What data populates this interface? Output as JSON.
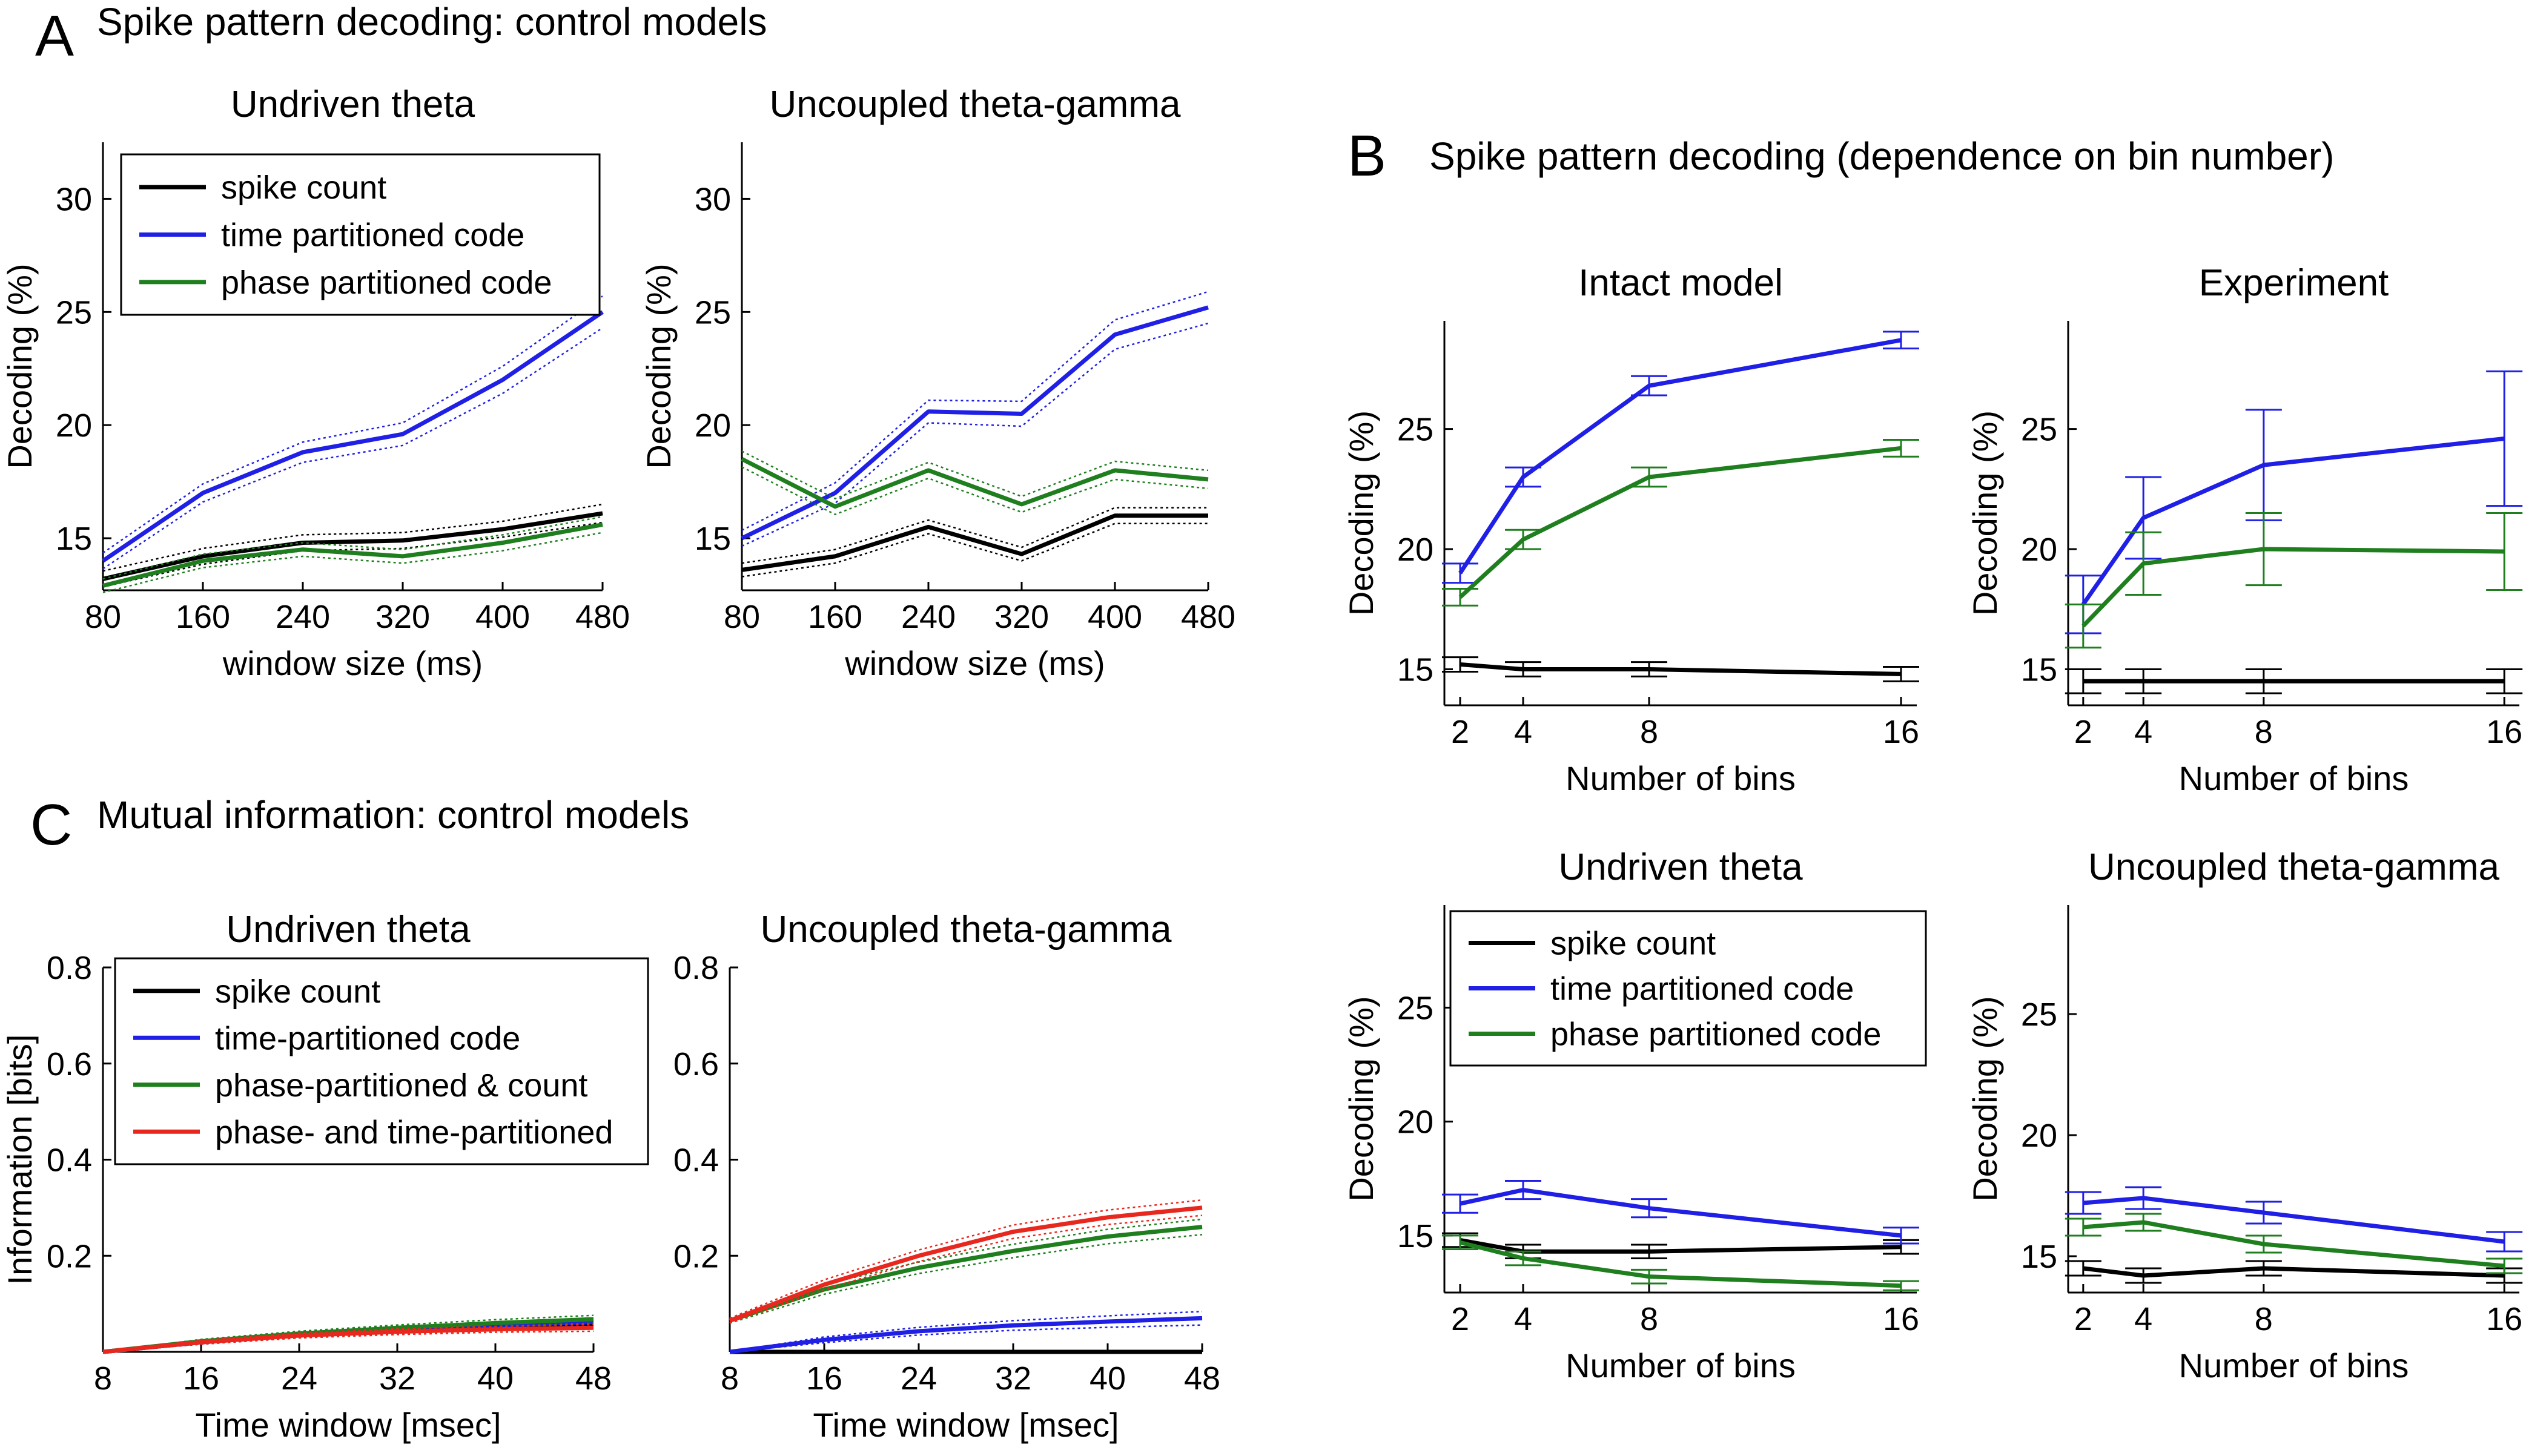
{
  "colors": {
    "spike_count": "#000000",
    "time_partitioned": "#1f1fe6",
    "phase_partitioned": "#1f7f1f",
    "phase_and_time": "#e8281e"
  },
  "panels": {
    "A": {
      "letter": "A",
      "title": "Spike pattern decoding: control models"
    },
    "B": {
      "letter": "B",
      "title": "Spike pattern decoding (dependence on bin number)"
    },
    "C": {
      "letter": "C",
      "title": "Mutual information: control models"
    }
  },
  "chart_data": [
    {
      "id": "A1",
      "type": "line",
      "title": "Undriven theta",
      "xlabel": "window size (ms)",
      "ylabel": "Decoding (%)",
      "x": [
        80,
        160,
        240,
        320,
        400,
        480
      ],
      "xlim": [
        80,
        480
      ],
      "ylim": [
        12.7,
        32.5
      ],
      "xticks": [
        "80",
        "160",
        "240",
        "320",
        "400",
        "480"
      ],
      "yticks": [
        "15",
        "20",
        "25",
        "30"
      ],
      "band": "dotted",
      "legend": [
        "spike count",
        "time partitioned code",
        "phase partitioned code"
      ],
      "series": [
        {
          "name": "spike count",
          "color_key": "spike_count",
          "values": [
            13.2,
            14.2,
            14.8,
            14.9,
            15.4,
            16.1
          ],
          "err": [
            0.35,
            0.35,
            0.35,
            0.35,
            0.35,
            0.4
          ]
        },
        {
          "name": "time partitioned code",
          "color_key": "time_partitioned",
          "values": [
            14.0,
            17.0,
            18.8,
            19.6,
            22.0,
            25.0
          ],
          "err": [
            0.35,
            0.4,
            0.45,
            0.5,
            0.6,
            0.7
          ]
        },
        {
          "name": "phase partitioned code",
          "color_key": "phase_partitioned",
          "values": [
            12.9,
            14.0,
            14.5,
            14.2,
            14.8,
            15.6
          ],
          "err": [
            0.3,
            0.3,
            0.3,
            0.3,
            0.35,
            0.35
          ]
        }
      ]
    },
    {
      "id": "A2",
      "type": "line",
      "title": "Uncoupled theta-gamma",
      "xlabel": "window size (ms)",
      "ylabel": "Decoding (%)",
      "x": [
        80,
        160,
        240,
        320,
        400,
        480
      ],
      "xlim": [
        80,
        480
      ],
      "ylim": [
        12.7,
        32.5
      ],
      "xticks": [
        "80",
        "160",
        "240",
        "320",
        "400",
        "480"
      ],
      "yticks": [
        "15",
        "20",
        "25",
        "30"
      ],
      "band": "dotted",
      "series": [
        {
          "name": "spike count",
          "color_key": "spike_count",
          "values": [
            13.6,
            14.2,
            15.5,
            14.3,
            16.0,
            16.0
          ],
          "err": [
            0.3,
            0.3,
            0.3,
            0.3,
            0.35,
            0.35
          ]
        },
        {
          "name": "time partitioned code",
          "color_key": "time_partitioned",
          "values": [
            15.0,
            17.0,
            20.6,
            20.5,
            24.0,
            25.2
          ],
          "err": [
            0.35,
            0.45,
            0.5,
            0.55,
            0.65,
            0.7
          ]
        },
        {
          "name": "phase partitioned code",
          "color_key": "phase_partitioned",
          "values": [
            18.5,
            16.4,
            18.0,
            16.5,
            18.0,
            17.6
          ],
          "err": [
            0.35,
            0.35,
            0.35,
            0.35,
            0.4,
            0.4
          ]
        }
      ]
    },
    {
      "id": "B1",
      "type": "line",
      "title": "Intact model",
      "xlabel": "Number of bins",
      "ylabel": "Decoding (%)",
      "x": [
        2,
        4,
        8,
        16
      ],
      "xlim": [
        1.5,
        16.5
      ],
      "ylim": [
        13.5,
        29.5
      ],
      "xticks": [
        "2",
        "4",
        "8",
        "16"
      ],
      "yticks": [
        "15",
        "20",
        "25"
      ],
      "band": "errorbar",
      "series": [
        {
          "name": "spike count",
          "color_key": "spike_count",
          "values": [
            15.2,
            15.0,
            15.0,
            14.8
          ],
          "err": [
            0.3,
            0.3,
            0.3,
            0.3
          ]
        },
        {
          "name": "time partitioned code",
          "color_key": "time_partitioned",
          "values": [
            19.0,
            23.0,
            26.8,
            28.7
          ],
          "err": [
            0.4,
            0.4,
            0.4,
            0.35
          ]
        },
        {
          "name": "phase partitioned code",
          "color_key": "phase_partitioned",
          "values": [
            18.0,
            20.4,
            23.0,
            24.2
          ],
          "err": [
            0.35,
            0.4,
            0.4,
            0.35
          ]
        }
      ]
    },
    {
      "id": "B2",
      "type": "line",
      "title": "Experiment",
      "xlabel": "Number of bins",
      "ylabel": "Decoding (%)",
      "x": [
        2,
        4,
        8,
        16
      ],
      "xlim": [
        1.5,
        16.5
      ],
      "ylim": [
        13.5,
        29.5
      ],
      "xticks": [
        "2",
        "4",
        "8",
        "16"
      ],
      "yticks": [
        "15",
        "20",
        "25"
      ],
      "band": "errorbar",
      "series": [
        {
          "name": "spike count",
          "color_key": "spike_count",
          "values": [
            14.5,
            14.5,
            14.5,
            14.5
          ],
          "err": [
            0.5,
            0.5,
            0.5,
            0.5
          ]
        },
        {
          "name": "time partitioned code",
          "color_key": "time_partitioned",
          "values": [
            17.7,
            21.3,
            23.5,
            24.6
          ],
          "err": [
            1.2,
            1.7,
            2.3,
            2.8
          ]
        },
        {
          "name": "phase partitioned code",
          "color_key": "phase_partitioned",
          "values": [
            16.8,
            19.4,
            20.0,
            19.9
          ],
          "err": [
            0.9,
            1.3,
            1.5,
            1.6
          ]
        }
      ]
    },
    {
      "id": "B3",
      "type": "line",
      "title": "Undriven theta",
      "xlabel": "Number of bins",
      "ylabel": "Decoding (%)",
      "x": [
        2,
        4,
        8,
        16
      ],
      "xlim": [
        1.5,
        16.5
      ],
      "ylim": [
        12.5,
        29.5
      ],
      "xticks": [
        "2",
        "4",
        "8",
        "16"
      ],
      "yticks": [
        "15",
        "20",
        "25"
      ],
      "band": "errorbar",
      "legend": [
        "spike count",
        "time partitioned code",
        "phase partitioned code"
      ],
      "series": [
        {
          "name": "spike count",
          "color_key": "spike_count",
          "values": [
            14.8,
            14.3,
            14.3,
            14.5
          ],
          "err": [
            0.3,
            0.3,
            0.3,
            0.3
          ]
        },
        {
          "name": "time partitioned code",
          "color_key": "time_partitioned",
          "values": [
            16.4,
            17.0,
            16.2,
            15.0
          ],
          "err": [
            0.4,
            0.4,
            0.4,
            0.35
          ]
        },
        {
          "name": "phase partitioned code",
          "color_key": "phase_partitioned",
          "values": [
            14.7,
            14.0,
            13.2,
            12.8
          ],
          "err": [
            0.3,
            0.3,
            0.3,
            0.2
          ]
        }
      ]
    },
    {
      "id": "B4",
      "type": "line",
      "title": "Uncoupled theta-gamma",
      "xlabel": "Number of bins",
      "ylabel": "Decoding (%)",
      "x": [
        2,
        4,
        8,
        16
      ],
      "xlim": [
        1.5,
        16.5
      ],
      "ylim": [
        13.5,
        29.5
      ],
      "xticks": [
        "2",
        "4",
        "8",
        "16"
      ],
      "yticks": [
        "15",
        "20",
        "25"
      ],
      "band": "errorbar",
      "series": [
        {
          "name": "spike count",
          "color_key": "spike_count",
          "values": [
            14.5,
            14.2,
            14.5,
            14.2
          ],
          "err": [
            0.3,
            0.3,
            0.3,
            0.3
          ]
        },
        {
          "name": "time partitioned code",
          "color_key": "time_partitioned",
          "values": [
            17.2,
            17.4,
            16.8,
            15.6
          ],
          "err": [
            0.45,
            0.45,
            0.45,
            0.4
          ]
        },
        {
          "name": "phase partitioned code",
          "color_key": "phase_partitioned",
          "values": [
            16.2,
            16.4,
            15.5,
            14.6
          ],
          "err": [
            0.35,
            0.35,
            0.35,
            0.3
          ]
        }
      ]
    },
    {
      "id": "C1",
      "type": "line",
      "title": "Undriven theta",
      "xlabel": "Time window [msec]",
      "ylabel": "Information [bits]",
      "x": [
        8,
        16,
        24,
        32,
        40,
        48
      ],
      "xlim": [
        8,
        48
      ],
      "ylim": [
        0,
        0.8
      ],
      "xticks": [
        "8",
        "16",
        "24",
        "32",
        "40",
        "48"
      ],
      "yticks": [
        "0.2",
        "0.4",
        "0.6",
        "0.8"
      ],
      "band": "dotted",
      "legend": [
        "spike count",
        "time-partitioned code",
        "phase-partitioned & count",
        "phase- and time-partitioned"
      ],
      "series": [
        {
          "name": "spike count",
          "color_key": "spike_count",
          "values": [
            0.0,
            0.02,
            0.035,
            0.045,
            0.052,
            0.058
          ],
          "err": [
            0.0,
            0.004,
            0.005,
            0.006,
            0.007,
            0.008
          ]
        },
        {
          "name": "time-partitioned code",
          "color_key": "time_partitioned",
          "values": [
            0.0,
            0.02,
            0.036,
            0.047,
            0.055,
            0.062
          ],
          "err": [
            0.0,
            0.004,
            0.005,
            0.006,
            0.007,
            0.008
          ]
        },
        {
          "name": "phase-partitioned & count",
          "color_key": "phase_partitioned",
          "values": [
            0.0,
            0.022,
            0.038,
            0.05,
            0.06,
            0.068
          ],
          "err": [
            0.0,
            0.004,
            0.005,
            0.006,
            0.007,
            0.008
          ]
        },
        {
          "name": "phase- and time-partitioned",
          "color_key": "phase_and_time",
          "values": [
            0.0,
            0.02,
            0.034,
            0.042,
            0.047,
            0.05
          ],
          "err": [
            0.0,
            0.004,
            0.005,
            0.006,
            0.006,
            0.007
          ]
        }
      ]
    },
    {
      "id": "C2",
      "type": "line",
      "title": "Uncoupled theta-gamma",
      "xlabel": "Time window [msec]",
      "ylabel": "",
      "x": [
        8,
        16,
        24,
        32,
        40,
        48
      ],
      "xlim": [
        8,
        48
      ],
      "ylim": [
        0,
        0.8
      ],
      "xticks": [
        "8",
        "16",
        "24",
        "32",
        "40",
        "48"
      ],
      "yticks": [
        "0.2",
        "0.4",
        "0.6",
        "0.8"
      ],
      "band": "dotted",
      "series": [
        {
          "name": "spike count",
          "color_key": "spike_count",
          "values": [
            0.0,
            0.0,
            0.0,
            0.0,
            0.0,
            0.0
          ],
          "err": [
            0,
            0,
            0,
            0,
            0,
            0
          ]
        },
        {
          "name": "time-partitioned code",
          "color_key": "time_partitioned",
          "values": [
            0.0,
            0.025,
            0.043,
            0.055,
            0.063,
            0.07
          ],
          "err": [
            0.0,
            0.006,
            0.008,
            0.01,
            0.012,
            0.014
          ]
        },
        {
          "name": "phase-partitioned & count",
          "color_key": "phase_partitioned",
          "values": [
            0.065,
            0.13,
            0.175,
            0.21,
            0.24,
            0.26
          ],
          "err": [
            0.005,
            0.01,
            0.012,
            0.014,
            0.015,
            0.016
          ]
        },
        {
          "name": "phase- and time-partitioned",
          "color_key": "phase_and_time",
          "values": [
            0.065,
            0.14,
            0.2,
            0.25,
            0.28,
            0.3
          ],
          "err": [
            0.005,
            0.01,
            0.012,
            0.014,
            0.015,
            0.016
          ]
        }
      ]
    }
  ]
}
